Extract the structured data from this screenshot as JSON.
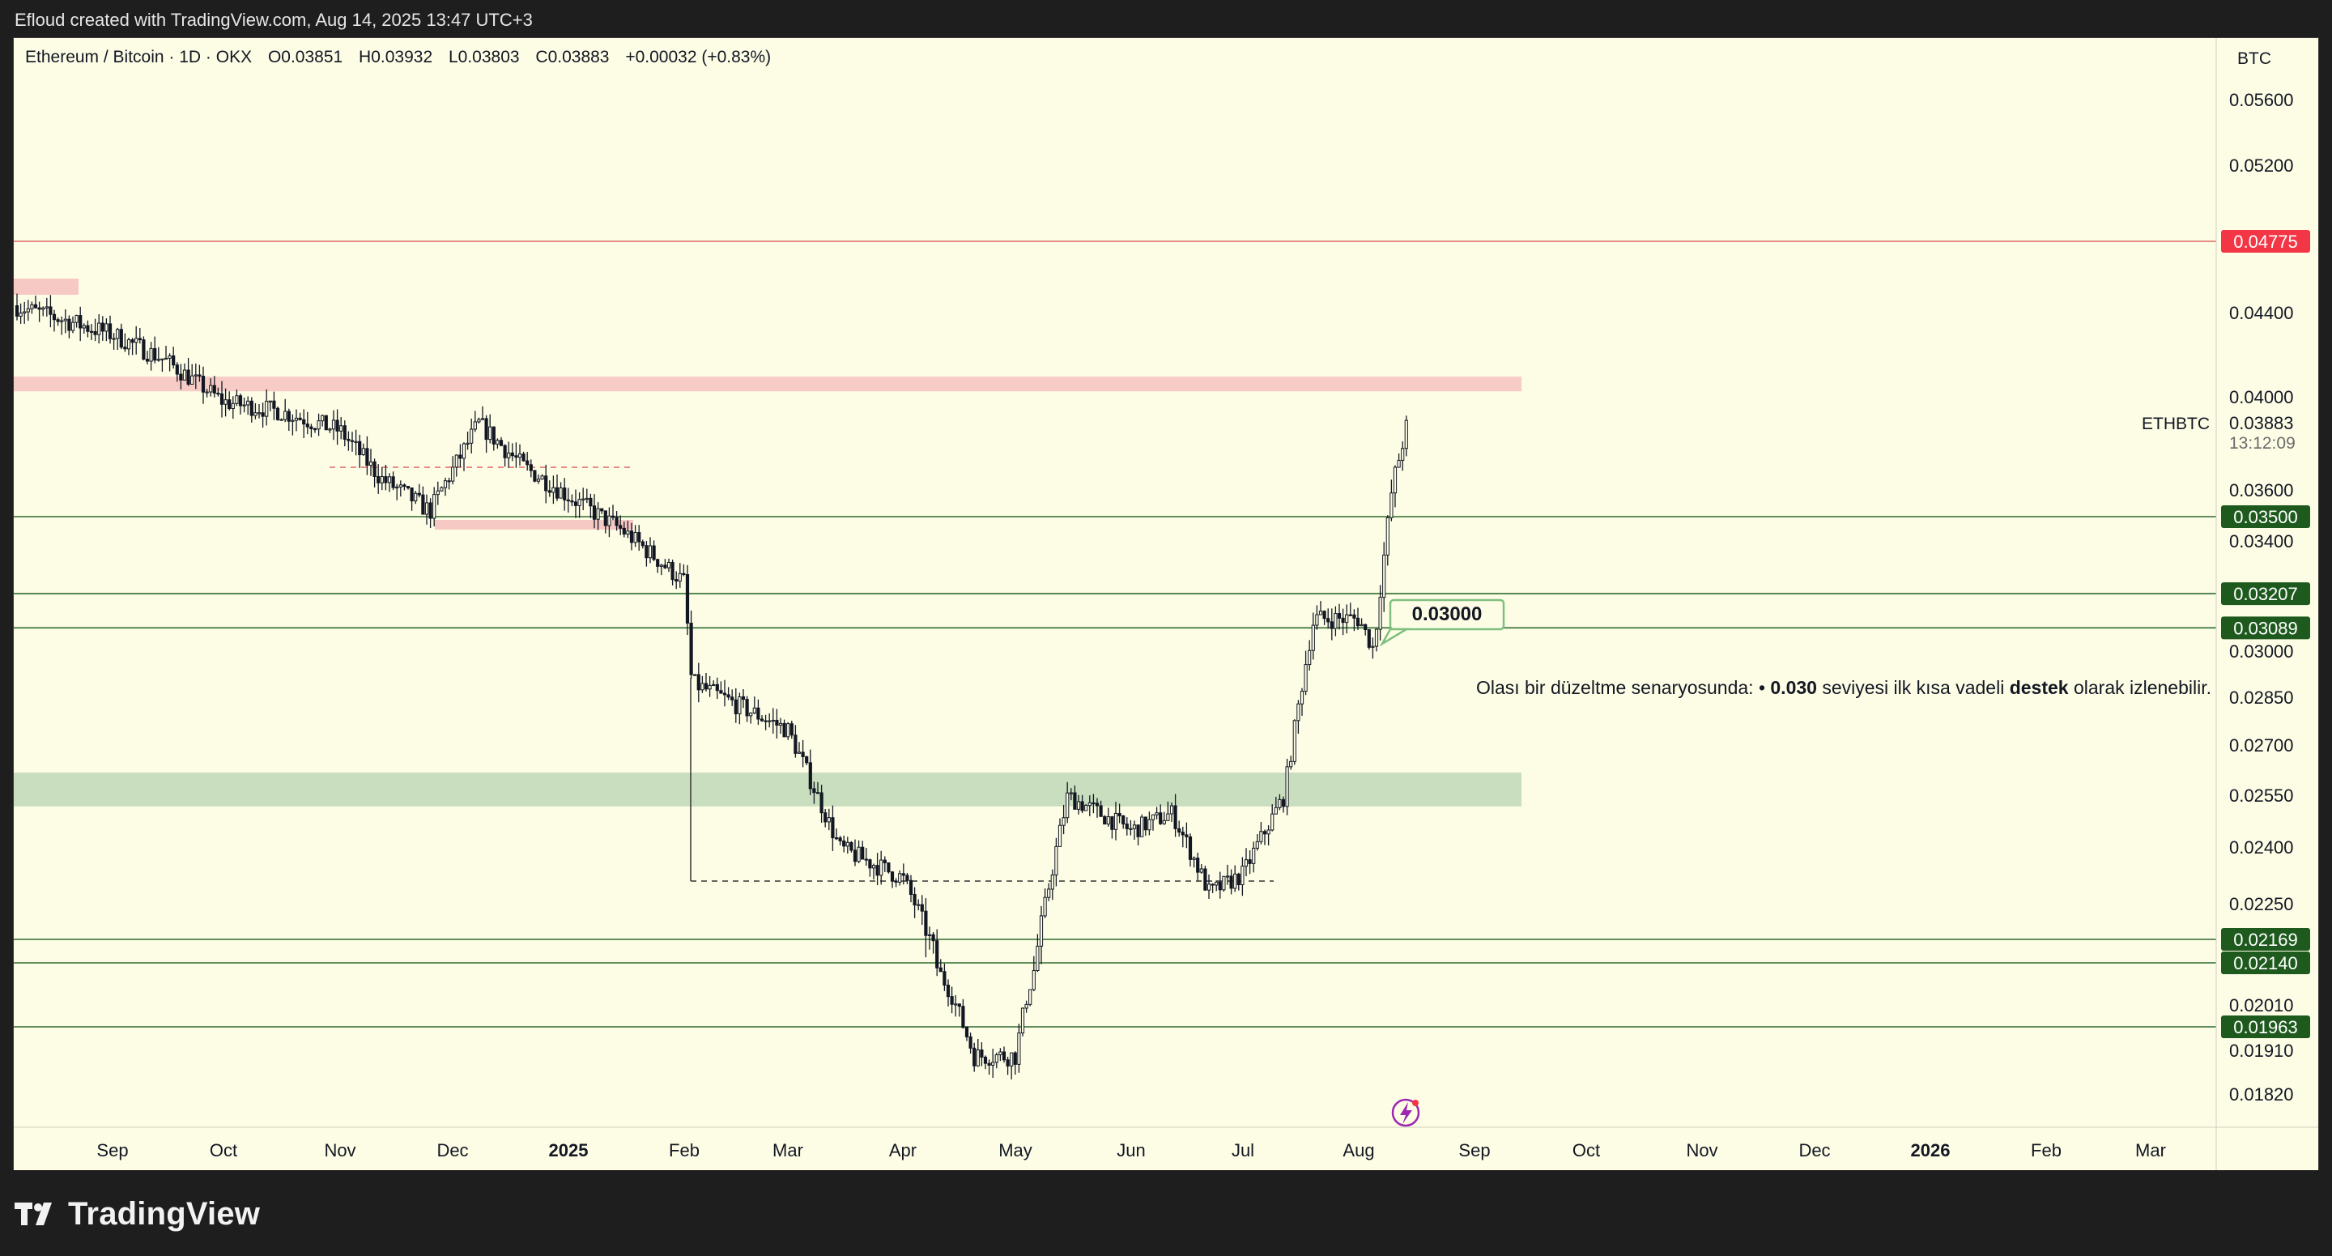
{
  "header": {
    "caption": "Efloud created with TradingView.com, Aug 14, 2025 13:47 UTC+3"
  },
  "legend": {
    "symbol": "Ethereum / Bitcoin · 1D · OKX",
    "open": "O0.03851",
    "high": "H0.03932",
    "low": "L0.03803",
    "close": "C0.03883",
    "change": "+0.00032 (+0.83%)"
  },
  "price_scale": {
    "currency": "BTC",
    "labels": [
      "0.05600",
      "0.05200",
      "0.04400",
      "0.04000",
      "0.03600",
      "0.03400",
      "0.03000",
      "0.02850",
      "0.02700",
      "0.02550",
      "0.02400",
      "0.02250",
      "0.02010",
      "0.01910",
      "0.01820"
    ],
    "level_tags": [
      {
        "value": "0.04775",
        "color": "#f23645"
      },
      {
        "value": "0.03500",
        "color": "#1e5a1e"
      },
      {
        "value": "0.03207",
        "color": "#1e5a1e"
      },
      {
        "value": "0.03089",
        "color": "#1e5a1e"
      },
      {
        "value": "0.02169",
        "color": "#1e5a1e"
      },
      {
        "value": "0.02140",
        "color": "#1e5a1e"
      },
      {
        "value": "0.01963",
        "color": "#1e5a1e"
      }
    ],
    "last_price": {
      "ticker": "ETHBTC",
      "value": "0.03883",
      "countdown": "13:12:09"
    }
  },
  "time_axis": {
    "labels": [
      "Sep",
      "Oct",
      "Nov",
      "Dec",
      "2025",
      "Feb",
      "Mar",
      "Apr",
      "May",
      "Jun",
      "Jul",
      "Aug",
      "Sep",
      "Oct",
      "Nov",
      "Dec",
      "2026",
      "Feb",
      "Mar"
    ],
    "bold": [
      "2025",
      "2026"
    ]
  },
  "annotations": {
    "callout_price": "0.03000",
    "note_prefix": "Olası bir düzeltme senaryosunda: • ",
    "note_bold1": "0.030",
    "note_mid": " seviyesi ilk kısa vadeli ",
    "note_bold2": "destek",
    "note_suffix": " olarak izlenebilir."
  },
  "footer": {
    "brand": "TradingView"
  },
  "colors": {
    "background": "#fdfde6",
    "candle": "#131722",
    "resistance_zone": "#f7c9c4",
    "support_zone": "#c5dcbd",
    "support_line": "#2e6b2e",
    "resistance_line": "#e06666"
  },
  "chart_data": {
    "type": "line",
    "title": "Ethereum / Bitcoin · 1D · OKX",
    "ylabel": "BTC",
    "ylim": [
      0.0175,
      0.058
    ],
    "series": [
      {
        "name": "ETHBTC",
        "x": [
          "2024-08-20",
          "2024-09-01",
          "2024-09-15",
          "2024-10-01",
          "2024-10-15",
          "2024-11-01",
          "2024-11-12",
          "2024-11-25",
          "2024-12-08",
          "2024-12-20",
          "2025-01-01",
          "2025-01-15",
          "2025-02-01",
          "2025-02-03",
          "2025-02-15",
          "2025-03-01",
          "2025-03-15",
          "2025-04-01",
          "2025-04-10",
          "2025-04-20",
          "2025-05-01",
          "2025-05-09",
          "2025-05-15",
          "2025-06-01",
          "2025-06-12",
          "2025-06-22",
          "2025-07-01",
          "2025-07-12",
          "2025-07-20",
          "2025-08-01",
          "2025-08-05",
          "2025-08-10",
          "2025-08-14"
        ],
        "values": [
          0.0444,
          0.043,
          0.0418,
          0.0398,
          0.0394,
          0.0385,
          0.0365,
          0.0352,
          0.0388,
          0.037,
          0.0358,
          0.0345,
          0.0325,
          0.029,
          0.0283,
          0.0275,
          0.024,
          0.0232,
          0.0213,
          0.019,
          0.019,
          0.0225,
          0.0255,
          0.0245,
          0.025,
          0.0228,
          0.0233,
          0.0255,
          0.0312,
          0.0312,
          0.0301,
          0.0362,
          0.0388
        ]
      }
    ],
    "horizontal_levels": [
      0.04775,
      0.035,
      0.03207,
      0.03089,
      0.02169,
      0.0214,
      0.01963
    ],
    "zones": [
      {
        "from": 0.0403,
        "to": 0.041,
        "kind": "resistance"
      },
      {
        "from": 0.0252,
        "to": 0.0262,
        "kind": "support"
      }
    ],
    "grid": false
  }
}
